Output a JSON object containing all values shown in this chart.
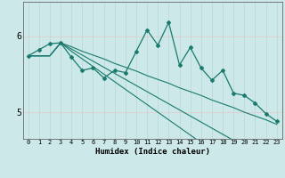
{
  "xlabel": "Humidex (Indice chaleur)",
  "bg_color": "#cce8e8",
  "line_color": "#1a7a6e",
  "grid_color_v": "#b8d8d8",
  "grid_color_h": "#e8c8c8",
  "x_values": [
    0,
    1,
    2,
    3,
    4,
    5,
    6,
    7,
    8,
    9,
    10,
    11,
    12,
    13,
    14,
    15,
    16,
    17,
    18,
    19,
    20,
    21,
    22,
    23
  ],
  "y_main": [
    5.74,
    5.82,
    5.9,
    5.91,
    5.72,
    5.55,
    5.58,
    5.45,
    5.55,
    5.52,
    5.8,
    6.08,
    5.88,
    6.18,
    5.62,
    5.85,
    5.58,
    5.42,
    5.55,
    5.25,
    5.22,
    5.12,
    4.98,
    4.88
  ],
  "y_line1": [
    5.74,
    5.74,
    5.74,
    5.91,
    5.8,
    5.7,
    5.6,
    5.5,
    5.4,
    5.3,
    5.2,
    5.1,
    5.0,
    4.9,
    4.8,
    4.7,
    4.6,
    4.5,
    4.4,
    4.3,
    4.2,
    4.1,
    4.0,
    3.9
  ],
  "y_line2": [
    5.74,
    5.74,
    5.74,
    5.91,
    5.83,
    5.75,
    5.67,
    5.59,
    5.51,
    5.43,
    5.35,
    5.27,
    5.19,
    5.11,
    5.03,
    4.95,
    4.87,
    4.79,
    4.71,
    4.63,
    4.55,
    4.47,
    4.39,
    4.31
  ],
  "y_line3": [
    5.74,
    5.74,
    5.74,
    5.91,
    5.86,
    5.8,
    5.75,
    5.7,
    5.64,
    5.59,
    5.54,
    5.48,
    5.43,
    5.38,
    5.32,
    5.27,
    5.22,
    5.16,
    5.11,
    5.06,
    5.0,
    4.95,
    4.9,
    4.84
  ],
  "ylim": [
    4.65,
    6.45
  ],
  "yticks": [
    5.0,
    6.0
  ],
  "ytick_labels": [
    "5",
    "6"
  ],
  "xlim": [
    -0.5,
    23.5
  ]
}
